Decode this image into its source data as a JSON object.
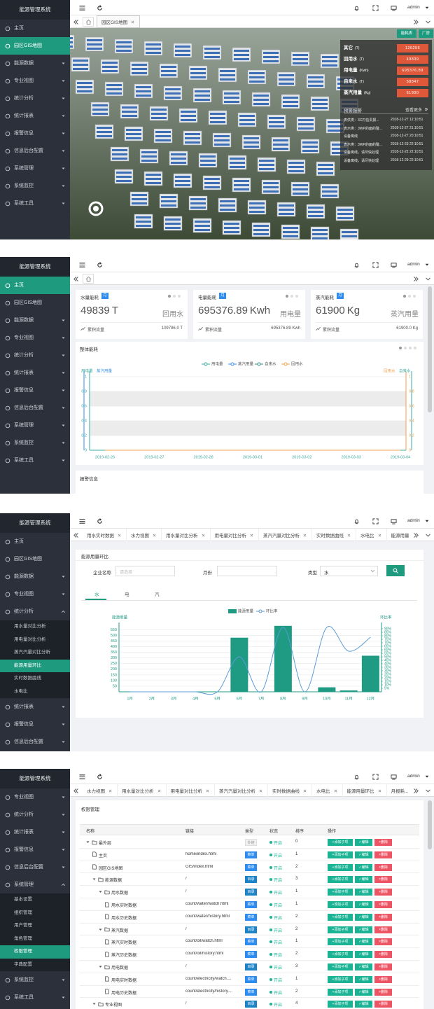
{
  "app_title": "能源管理系统",
  "user": "admin",
  "panel1": {
    "home_tab": true,
    "menu": [
      {
        "label": "主页"
      },
      {
        "label": "园区GIS地图",
        "active": true
      },
      {
        "label": "能源数据",
        "sub": true
      },
      {
        "label": "专业视图",
        "sub": true
      },
      {
        "label": "统计分析",
        "sub": true
      },
      {
        "label": "统计报表",
        "sub": true
      },
      {
        "label": "报警信息",
        "sub": true
      },
      {
        "label": "信息后台配置",
        "sub": true
      },
      {
        "label": "系统管理",
        "sub": true
      },
      {
        "label": "系统监控",
        "sub": true
      },
      {
        "label": "系统工具",
        "sub": true
      }
    ],
    "tabs": [
      "园区GIS地图"
    ],
    "buttons": [
      "能耗表",
      "厂房"
    ],
    "stats": [
      {
        "label": "其它",
        "unit": "(T)",
        "value": 126256
      },
      {
        "label": "回用水",
        "unit": "(T)",
        "value": 49839
      },
      {
        "label": "用电量",
        "unit": "(Kwh)",
        "value": 695376.89
      },
      {
        "label": "自来水",
        "unit": "(T)",
        "value": 58847
      },
      {
        "label": "蒸汽用量",
        "unit": "(Kg)",
        "value": 61900
      }
    ],
    "alerts_title": "预警报警",
    "more": "查看更多",
    "alerts": [
      {
        "text": "表供类：3C円信责报...",
        "time": "2018-12-27 12:10:51"
      },
      {
        "text": "表示类：3WP的面的警...",
        "time": "2018-12-27 21:10:51"
      },
      {
        "text": "设备离线",
        "time": "2018-12-27 20:10:51"
      },
      {
        "text": "表示类：3WP的面的警...",
        "time": "2018-12-23 22:10:51"
      },
      {
        "text": "设备离线，请尽快处理",
        "time": "2018-12-22 22:10:51"
      },
      {
        "text": "设备离线，请尽快处理",
        "time": "2018-12-29 22:10:51"
      }
    ]
  },
  "panel2": {
    "home_tab": true,
    "menu": [
      {
        "label": "主页",
        "active": true
      },
      {
        "label": "园区GIS地图"
      },
      {
        "label": "能源数据",
        "sub": true
      },
      {
        "label": "专业视图",
        "sub": true
      },
      {
        "label": "统计分析",
        "sub": true
      },
      {
        "label": "统计报表",
        "sub": true
      },
      {
        "label": "报警信息",
        "sub": true
      },
      {
        "label": "信息后台配置",
        "sub": true
      },
      {
        "label": "系统管理",
        "sub": true
      },
      {
        "label": "系统监控",
        "sub": true
      },
      {
        "label": "系统工具",
        "sub": true
      }
    ],
    "tabs": [],
    "cards": [
      {
        "title": "水量能耗",
        "badge": "月",
        "value": 49839,
        "unit": "T",
        "label": "回用水",
        "total_label": "累积流量",
        "total": "109786.0 T"
      },
      {
        "title": "电量能耗",
        "badge": "月",
        "value": 695376.89,
        "unit": "Kwh",
        "label": "用电量",
        "total_label": "累积流量",
        "total": "695376.89 Kwh"
      },
      {
        "title": "蒸汽能耗",
        "badge": "月",
        "value": 61900,
        "unit": "Kg",
        "label": "蒸汽用量",
        "total_label": "累积流量",
        "total": "61900.0 Kg"
      }
    ],
    "chart": {
      "type": "line",
      "title": "整体能耗",
      "x": [
        "2019-02-26",
        "2019-02-27",
        "2019-02-28",
        "2019-03-01",
        "2019-03-02",
        "2019-03-03",
        "2019-03-04"
      ],
      "series": [
        {
          "name": "用电量",
          "color": "#3aa99f",
          "values": [
            0,
            0,
            0,
            0,
            0,
            0,
            0
          ]
        },
        {
          "name": "蒸汽用量",
          "color": "#3a8ee6",
          "values": [
            0,
            0,
            0,
            0,
            0,
            0,
            0
          ]
        },
        {
          "name": "自来水",
          "color": "#2f8f83",
          "values": [
            0,
            0,
            0,
            0,
            0,
            0,
            0
          ]
        },
        {
          "name": "回用水",
          "color": "#f0a050",
          "values": [
            0,
            0,
            0,
            0,
            0,
            0,
            0
          ]
        }
      ],
      "y_names": [
        "用电量",
        "蒸汽用量"
      ],
      "y2_names": [
        "回用水",
        "自来水"
      ],
      "ylim": [
        0,
        1
      ],
      "yticks": [
        0,
        0.2,
        0.4,
        0.6,
        0.8,
        1
      ],
      "y2lim": [
        0,
        1
      ],
      "y2ticks": [
        0,
        0.2,
        0.4,
        0.6,
        0.8,
        1
      ],
      "grid": true
    },
    "alarm_title": "报警信息"
  },
  "panel3": {
    "menu": [
      {
        "label": "主页"
      },
      {
        "label": "园区GIS地图"
      },
      {
        "label": "能源数据",
        "sub": true
      },
      {
        "label": "专业视图",
        "sub": true
      },
      {
        "label": "统计分析",
        "sub": true,
        "children": [
          {
            "label": "用水量对比分析"
          },
          {
            "label": "用电量对比分析"
          },
          {
            "label": "蒸汽汽量对比分析"
          },
          {
            "label": "能源用量环比",
            "active": true
          },
          {
            "label": "实时数据曲线"
          },
          {
            "label": "水电比"
          }
        ]
      },
      {
        "label": "统计报表",
        "sub": true
      },
      {
        "label": "报警信息",
        "sub": true
      },
      {
        "label": "信息后台配置",
        "sub": true
      }
    ],
    "tabs": [
      "用水实时数据",
      "水力视图",
      "用水量对比分析",
      "用电量对比分析",
      "蒸汽汽量对比分析",
      "实时数据曲线",
      "水电比",
      "能源用量..."
    ],
    "title": "能源用量环比",
    "form": {
      "company": "企业名称",
      "company_placeholder": "请选择",
      "month": "月份",
      "kind": "类型",
      "kind_value": "水"
    },
    "subtabs": [
      "水",
      "电",
      "汽"
    ],
    "chart": {
      "type": "bar",
      "categories": [
        "1月",
        "2月",
        "3月",
        "4月",
        "5月",
        "6月",
        "7月",
        "8月",
        "9月",
        "10月",
        "11月",
        "12月"
      ],
      "series": [
        {
          "name": "能源用量",
          "color": "#1f9b84",
          "values": [
            0,
            0,
            0,
            0,
            0,
            480,
            0,
            585,
            0,
            40,
            12,
            320
          ]
        },
        {
          "name": "环比率",
          "color": "#5b9bd5",
          "type": "line",
          "axis": "y2",
          "values": [
            0,
            0,
            0,
            0,
            0,
            50,
            0,
            92,
            0,
            92,
            58,
            78
          ]
        }
      ],
      "y_name": "能源用量",
      "y2_name": "环比率",
      "ylim": [
        0,
        590
      ],
      "yticks": [
        50,
        100,
        150,
        200,
        250,
        300,
        350,
        400,
        450,
        500,
        550
      ],
      "y2lim": [
        0,
        95
      ],
      "y2ticks": [
        {
          "value": 5,
          "label": "5%"
        },
        {
          "value": 10,
          "label": "10%"
        },
        {
          "value": 15,
          "label": "15%"
        },
        {
          "value": 20,
          "label": "20%"
        },
        {
          "value": 25,
          "label": "25%"
        },
        {
          "value": 30,
          "label": "30%"
        },
        {
          "value": 35,
          "label": "35%"
        },
        {
          "value": 40,
          "label": "40%"
        },
        {
          "value": 45,
          "label": "45%"
        },
        {
          "value": 50,
          "label": "50%"
        },
        {
          "value": 55,
          "label": "55%"
        },
        {
          "value": 60,
          "label": "60%"
        },
        {
          "value": 65,
          "label": "65%"
        },
        {
          "value": 70,
          "label": "70%"
        },
        {
          "value": 75,
          "label": "75%"
        },
        {
          "value": 80,
          "label": "80%"
        },
        {
          "value": 85,
          "label": "85%"
        },
        {
          "value": 90,
          "label": "90%"
        }
      ],
      "grid": true
    }
  },
  "panel4": {
    "menu": [
      {
        "label": "专业视图",
        "sub": true
      },
      {
        "label": "统计分析",
        "sub": true
      },
      {
        "label": "统计报表",
        "sub": true
      },
      {
        "label": "报警信息",
        "sub": true
      },
      {
        "label": "信息后台配置",
        "sub": true
      },
      {
        "label": "系统管理",
        "sub": true,
        "children": [
          {
            "label": "基本设置"
          },
          {
            "label": "组织管理"
          },
          {
            "label": "用户管理"
          },
          {
            "label": "角色管理"
          },
          {
            "label": "权限管理",
            "active": true
          },
          {
            "label": "字典配置"
          }
        ]
      },
      {
        "label": "系统监控",
        "sub": true
      },
      {
        "label": "系统工具",
        "sub": true
      }
    ],
    "tabs": [
      "水力视图",
      "用水量对比分析",
      "用电量对比分析",
      "蒸汽汽量对比分析",
      "实时数据曲线",
      "水电比",
      "能源用量环比",
      "月报耗..."
    ],
    "title": "权限管理",
    "table": {
      "columns": [
        "名称",
        "链接",
        "类型",
        "状态",
        "排序",
        "操作"
      ],
      "actions": [
        "+添加子项",
        "✓编辑",
        "×删除"
      ],
      "action_colors": [
        "#1ab394",
        "#1ab394",
        "#ed5565"
      ],
      "type_styles": {
        "外链": {
          "bg": "#f2f2f2",
          "fg": "#999"
        },
        "菜单": {
          "bg": "#2d8cf0",
          "fg": "#fff"
        },
        "目录": {
          "bg": "#1c84c6",
          "fg": "#fff"
        }
      },
      "rows": [
        {
          "name": "最外层",
          "type": "外链",
          "status": "开启",
          "order": 0,
          "children": [
            {
              "name": "主页",
              "link": "home/index.html",
              "type": "菜单",
              "status": "开启",
              "order": 1
            },
            {
              "name": "园区GIS地图",
              "link": "GIS/index.html",
              "type": "菜单",
              "status": "开启",
              "order": 2
            },
            {
              "name": "能源数据",
              "link": "/",
              "type": "目录",
              "status": "开启",
              "order": 3,
              "children": [
                {
                  "name": "用水数据",
                  "link": "/",
                  "type": "目录",
                  "status": "开启",
                  "order": 1,
                  "children": [
                    {
                      "name": "用水实时数据",
                      "link": "count/water/watch.html",
                      "type": "菜单",
                      "status": "开启",
                      "order": 1
                    },
                    {
                      "name": "用水历史数据",
                      "link": "count/water/history.html",
                      "type": "菜单",
                      "status": "开启",
                      "order": 2
                    }
                  ]
                },
                {
                  "name": "蒸汽数据",
                  "link": "/",
                  "type": "目录",
                  "status": "开启",
                  "order": 2,
                  "children": [
                    {
                      "name": "蒸汽实时数据",
                      "link": "count/oil/watch.html",
                      "type": "菜单",
                      "status": "开启",
                      "order": 1
                    },
                    {
                      "name": "蒸汽历史数据",
                      "link": "count/oil/history.html",
                      "type": "菜单",
                      "status": "开启",
                      "order": 2
                    }
                  ]
                },
                {
                  "name": "用电数据",
                  "link": "/",
                  "type": "目录",
                  "status": "开启",
                  "order": 3,
                  "children": [
                    {
                      "name": "用电实时数据",
                      "link": "count/electricity/watch....",
                      "type": "菜单",
                      "status": "开启",
                      "order": 1
                    },
                    {
                      "name": "用电历史数据",
                      "link": "count/electricity/history....",
                      "type": "菜单",
                      "status": "开启",
                      "order": 2
                    }
                  ]
                }
              ]
            },
            {
              "name": "专业视图",
              "link": "/",
              "type": "目录",
              "status": "开启",
              "order": 4,
              "children": []
            }
          ]
        }
      ]
    }
  }
}
